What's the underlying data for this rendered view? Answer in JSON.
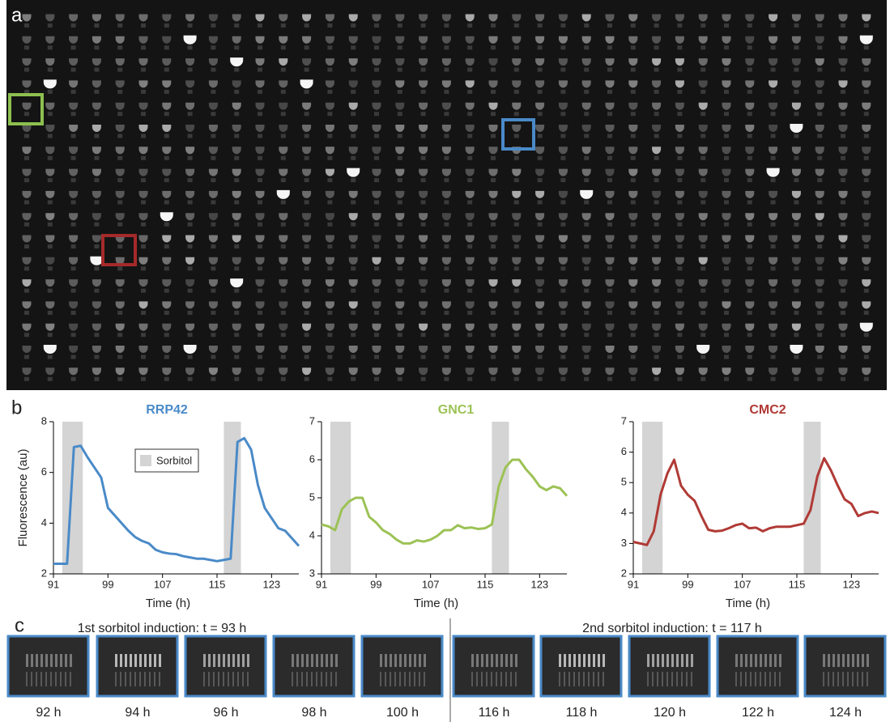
{
  "panel_labels": [
    "a",
    "b",
    "c"
  ],
  "chart_data": [
    {
      "type": "line",
      "title": "RRP42",
      "color": "#4a8ac8",
      "ylabel": "Fluorescence (au)",
      "xlabel": "Time (h)",
      "x": [
        91,
        92,
        93,
        94,
        95,
        96,
        97,
        98,
        99,
        100,
        101,
        102,
        103,
        104,
        105,
        106,
        107,
        108,
        109,
        110,
        111,
        112,
        113,
        114,
        115,
        116,
        117,
        118,
        119,
        120,
        121,
        122,
        123,
        124,
        125,
        126,
        127
      ],
      "values": [
        2.4,
        2.4,
        2.4,
        7.0,
        7.05,
        6.6,
        6.2,
        5.8,
        4.6,
        4.3,
        4.0,
        3.7,
        3.45,
        3.3,
        3.2,
        2.95,
        2.85,
        2.8,
        2.78,
        2.7,
        2.65,
        2.6,
        2.6,
        2.55,
        2.5,
        2.55,
        2.6,
        7.2,
        7.35,
        6.9,
        5.5,
        4.6,
        4.2,
        3.8,
        3.7,
        3.4,
        3.1
      ],
      "xlim": [
        91,
        127
      ],
      "xticks": [
        91,
        99,
        107,
        115,
        123
      ],
      "ylim": [
        2,
        8
      ],
      "yticks": [
        2,
        4,
        6,
        8
      ],
      "shading": {
        "name": "Sorbitol",
        "color": "#d4d4d4",
        "spans": [
          [
            92.3,
            95.3
          ],
          [
            116,
            118.5
          ]
        ]
      }
    },
    {
      "type": "line",
      "title": "GNC1",
      "color": "#9cc255",
      "xlabel": "Time (h)",
      "x": [
        91,
        92,
        93,
        94,
        95,
        96,
        97,
        98,
        99,
        100,
        101,
        102,
        103,
        104,
        105,
        106,
        107,
        108,
        109,
        110,
        111,
        112,
        113,
        114,
        115,
        116,
        117,
        118,
        119,
        120,
        121,
        122,
        123,
        124,
        125,
        126,
        127
      ],
      "values": [
        4.3,
        4.25,
        4.15,
        4.7,
        4.9,
        5.0,
        5.0,
        4.5,
        4.35,
        4.15,
        4.05,
        3.9,
        3.8,
        3.8,
        3.88,
        3.85,
        3.9,
        4.0,
        4.15,
        4.15,
        4.28,
        4.2,
        4.22,
        4.18,
        4.2,
        4.3,
        5.3,
        5.8,
        6.0,
        6.0,
        5.75,
        5.55,
        5.3,
        5.2,
        5.3,
        5.25,
        5.05
      ],
      "xlim": [
        91,
        127
      ],
      "xticks": [
        91,
        99,
        107,
        115,
        123
      ],
      "ylim": [
        3,
        7
      ],
      "yticks": [
        3,
        4,
        5,
        6,
        7
      ],
      "shading": {
        "color": "#d4d4d4",
        "spans": [
          [
            92.3,
            95.3
          ],
          [
            116,
            118.5
          ]
        ]
      }
    },
    {
      "type": "line",
      "title": "CMC2",
      "color": "#b03a35",
      "xlabel": "Time (h)",
      "x": [
        91,
        92,
        93,
        94,
        95,
        96,
        97,
        98,
        99,
        100,
        101,
        102,
        103,
        104,
        105,
        106,
        107,
        108,
        109,
        110,
        111,
        112,
        113,
        114,
        115,
        116,
        117,
        118,
        119,
        120,
        121,
        122,
        123,
        124,
        125,
        126,
        127
      ],
      "values": [
        3.05,
        3.0,
        2.95,
        3.4,
        4.6,
        5.3,
        5.75,
        4.9,
        4.6,
        4.4,
        3.9,
        3.45,
        3.4,
        3.42,
        3.5,
        3.6,
        3.65,
        3.5,
        3.52,
        3.4,
        3.5,
        3.55,
        3.55,
        3.55,
        3.6,
        3.65,
        4.1,
        5.2,
        5.8,
        5.4,
        4.9,
        4.45,
        4.3,
        3.9,
        4.0,
        4.05,
        4.0
      ],
      "xlim": [
        91,
        127
      ],
      "xticks": [
        91,
        99,
        107,
        115,
        123
      ],
      "ylim": [
        2,
        7
      ],
      "yticks": [
        2,
        3,
        4,
        5,
        6,
        7
      ],
      "shading": {
        "color": "#d4d4d4",
        "spans": [
          [
            92.3,
            95.3
          ],
          [
            116,
            118.5
          ]
        ]
      }
    }
  ],
  "panel_c": {
    "groups": [
      {
        "title": "1st sorbitol induction:  t = 93 h",
        "frames": [
          "92 h",
          "94 h",
          "96 h",
          "98 h",
          "100 h"
        ]
      },
      {
        "title": "2nd sorbitol induction:  t = 117 h",
        "frames": [
          "116 h",
          "118 h",
          "120 h",
          "122 h",
          "124 h"
        ]
      }
    ]
  }
}
